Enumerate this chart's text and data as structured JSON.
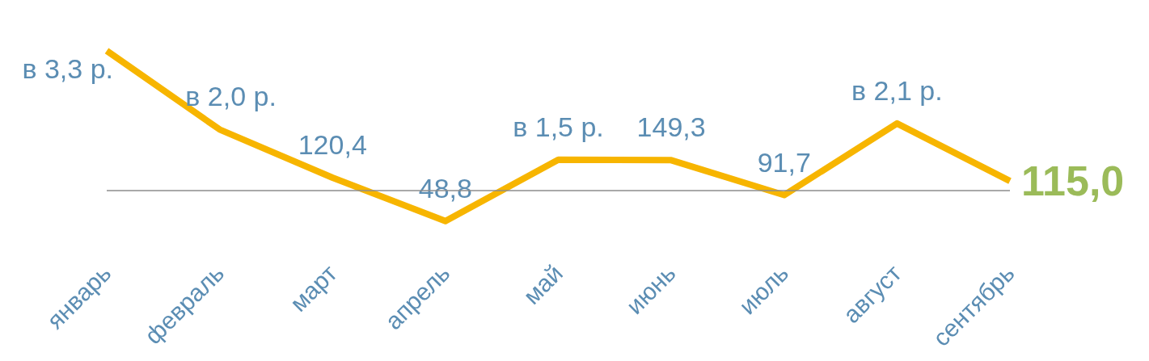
{
  "chart_data": {
    "type": "line",
    "categories": [
      "январь",
      "февраль",
      "март",
      "апрель",
      "май",
      "июнь",
      "июль",
      "август",
      "сентябрь"
    ],
    "series": [
      {
        "color": "#f7b500",
        "values": [
          330,
          200,
          120.4,
          48.8,
          150,
          149.3,
          91.7,
          210,
          115.0
        ],
        "value_labels": [
          "в 3,3 р.",
          "в 2,0 р.",
          "120,4",
          "48,8",
          "в 1,5 р.",
          "149,3",
          "91,7",
          "в 2,1 р.",
          "115,0"
        ]
      }
    ],
    "ref_lines": [
      {
        "axis": "y",
        "value": 100,
        "color": "#8c8c8c"
      }
    ],
    "marker": "none"
  }
}
